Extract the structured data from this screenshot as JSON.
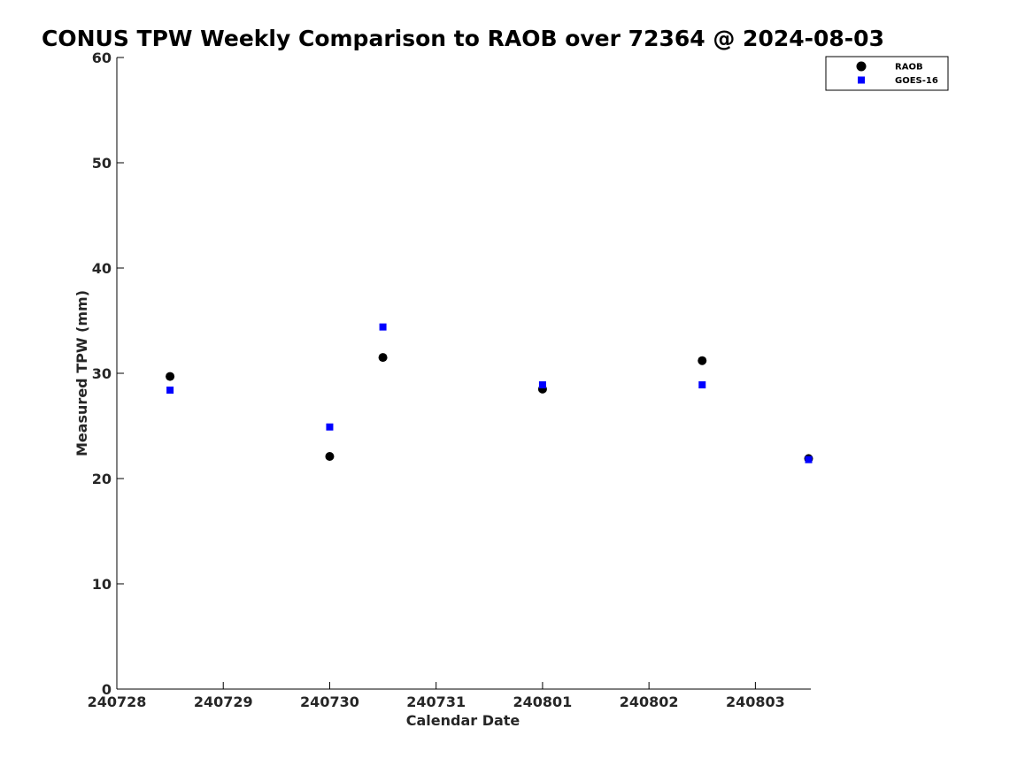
{
  "chart_data": {
    "type": "scatter",
    "title": "CONUS TPW Weekly Comparison to RAOB over 72364 @ 2024-08-03",
    "xlabel": "Calendar Date",
    "ylabel": "Measured TPW (mm)",
    "x_tick_labels": [
      "240728",
      "240729",
      "240730",
      "240731",
      "240801",
      "240802",
      "240803"
    ],
    "x_tick_dates": [
      "2024-07-28",
      "2024-07-29",
      "2024-07-30",
      "2024-07-31",
      "2024-08-01",
      "2024-08-02",
      "2024-08-03"
    ],
    "xlim": [
      "2024-07-28T00:00",
      "2024-08-03T12:30"
    ],
    "y_ticks": [
      0,
      10,
      20,
      30,
      40,
      50,
      60
    ],
    "ylim": [
      0,
      60
    ],
    "grid": false,
    "legend_position": "top-right",
    "series": [
      {
        "name": "RAOB",
        "marker": "circle",
        "color": "#000000",
        "points": [
          {
            "x": "2024-07-28T12:00",
            "y": 29.7
          },
          {
            "x": "2024-07-30T00:00",
            "y": 22.1
          },
          {
            "x": "2024-07-30T12:00",
            "y": 31.5
          },
          {
            "x": "2024-08-01T00:00",
            "y": 28.5
          },
          {
            "x": "2024-08-02T12:00",
            "y": 31.2
          },
          {
            "x": "2024-08-03T12:00",
            "y": 21.9
          }
        ]
      },
      {
        "name": "GOES-16",
        "marker": "square",
        "color": "#0000ff",
        "points": [
          {
            "x": "2024-07-28T12:00",
            "y": 28.4
          },
          {
            "x": "2024-07-30T00:00",
            "y": 24.9
          },
          {
            "x": "2024-07-30T12:00",
            "y": 34.4
          },
          {
            "x": "2024-08-01T00:00",
            "y": 28.9
          },
          {
            "x": "2024-08-02T12:00",
            "y": 28.9
          },
          {
            "x": "2024-08-03T12:00",
            "y": 21.8
          }
        ]
      }
    ]
  }
}
